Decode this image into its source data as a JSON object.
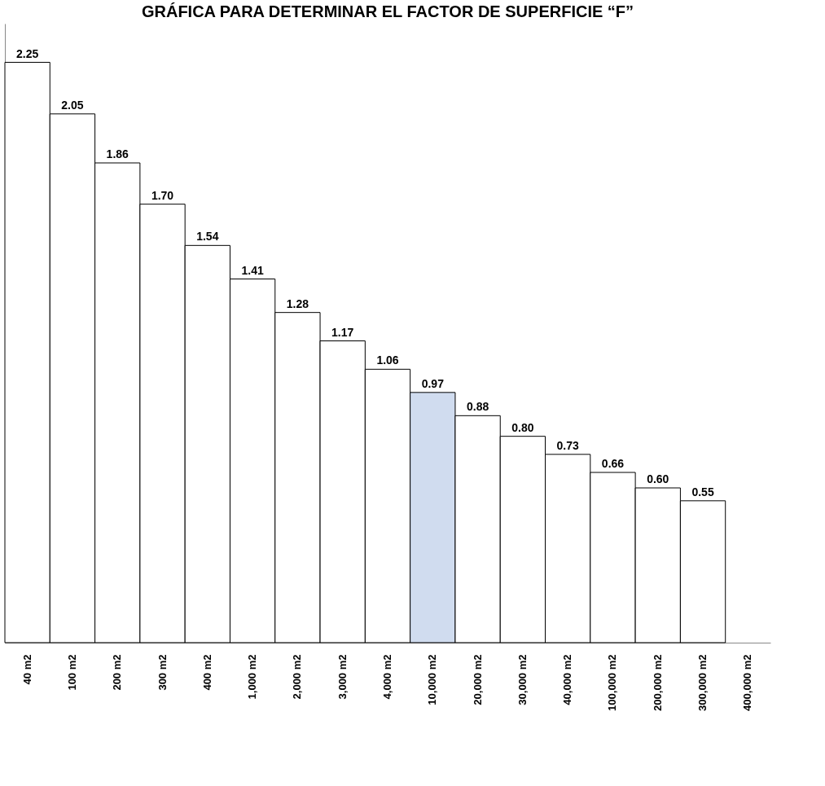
{
  "chart_data": {
    "type": "bar",
    "title": "GRÁFICA PARA DETERMINAR EL FACTOR DE SUPERFICIE “F”",
    "categories": [
      "40 m2",
      "100 m2",
      "200 m2",
      "300 m2",
      "400 m2",
      "1,000 m2",
      "2,000 m2",
      "3,000 m2",
      "4,000 m2",
      "10,000 m2",
      "20,000 m2",
      "30,000 m2",
      "40,000 m2",
      "100,000 m2",
      "200,000 m2",
      "300,000 m2",
      "400,000 m2"
    ],
    "values": [
      2.25,
      2.05,
      1.86,
      1.7,
      1.54,
      1.41,
      1.28,
      1.17,
      1.06,
      0.97,
      0.88,
      0.8,
      0.73,
      0.66,
      0.6,
      0.55,
      null
    ],
    "colors": [
      "#ffffff",
      "#ffffff",
      "#ffffff",
      "#ffffff",
      "#ffffff",
      "#ffffff",
      "#ffffff",
      "#ffffff",
      "#ffffff",
      "#d0dcef",
      "#ffffff",
      "#ffffff",
      "#ffffff",
      "#ffffff",
      "#ffffff",
      "#ffffff",
      "#ffffff"
    ],
    "value_labels": [
      "2.25",
      "2.05",
      "1.86",
      "1.70",
      "1.54",
      "1.41",
      "1.28",
      "1.17",
      "1.06",
      "0.97",
      "0.88",
      "0.80",
      "0.73",
      "0.66",
      "0.60",
      "0.55",
      null
    ],
    "tick_labels": "x"
  }
}
